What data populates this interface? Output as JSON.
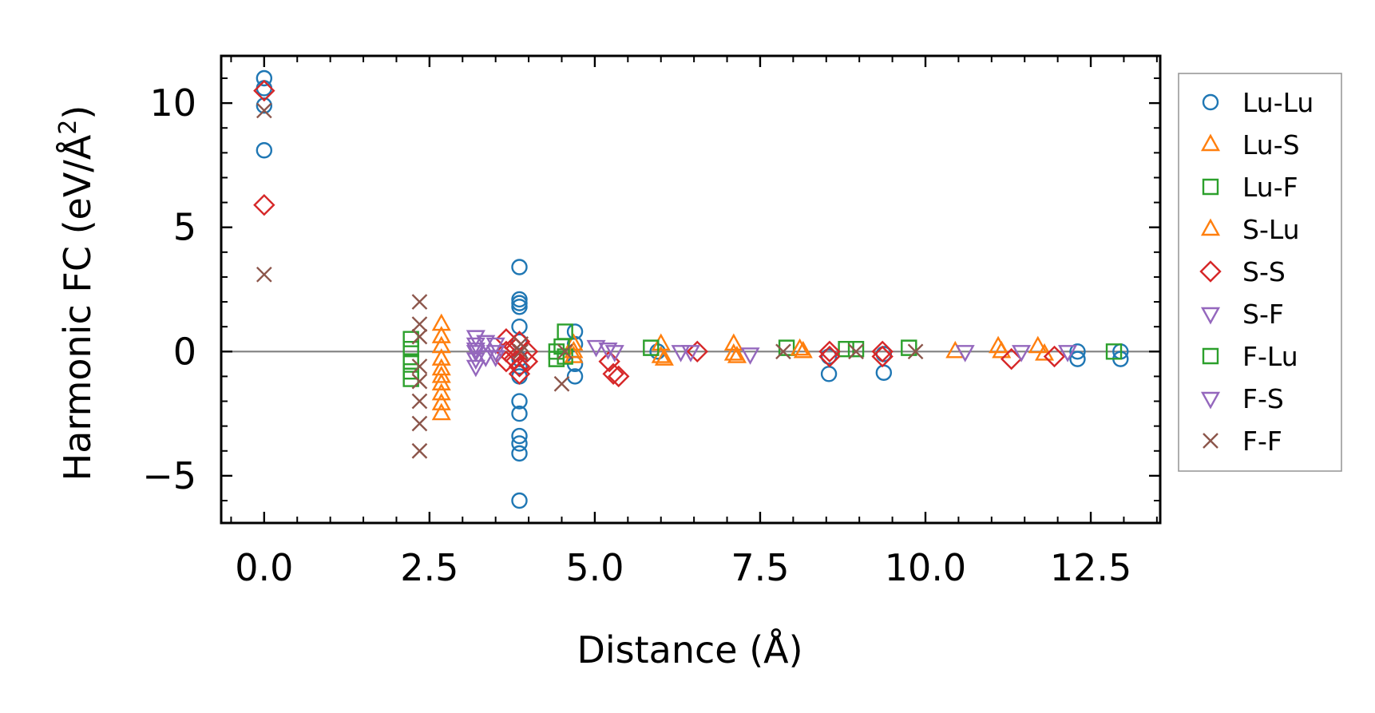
{
  "chart_data": {
    "type": "scatter",
    "title": "",
    "xlabel": "Distance (Å)",
    "ylabel_main": "Harmonic FC (eV/Å",
    "ylabel_sup": "2",
    "ylabel_end": ")",
    "xlim": [
      -0.65,
      13.55
    ],
    "ylim": [
      -6.9,
      11.9
    ],
    "x_ticks": [
      0.0,
      2.5,
      5.0,
      7.5,
      10.0,
      12.5
    ],
    "x_tick_labels": [
      "0.0",
      "2.5",
      "5.0",
      "7.5",
      "10.0",
      "12.5"
    ],
    "y_ticks": [
      -5,
      0,
      5,
      10
    ],
    "y_tick_labels": [
      "−5",
      "0",
      "5",
      "10"
    ],
    "zero_line": 0,
    "grid": false,
    "legend_position": "outside-right",
    "series": [
      {
        "name": "Lu-Lu",
        "marker": "circle",
        "color": "#1f77b4",
        "points": [
          [
            0,
            11.0
          ],
          [
            0,
            10.6
          ],
          [
            0,
            9.9
          ],
          [
            0,
            8.1
          ],
          [
            3.86,
            3.4
          ],
          [
            3.86,
            2.1
          ],
          [
            3.86,
            1.95
          ],
          [
            3.86,
            1.8
          ],
          [
            3.86,
            1.0
          ],
          [
            3.86,
            0.4
          ],
          [
            3.86,
            -0.3
          ],
          [
            3.86,
            -0.6
          ],
          [
            3.86,
            -1.0
          ],
          [
            3.86,
            -2.0
          ],
          [
            3.86,
            -2.5
          ],
          [
            3.86,
            -3.4
          ],
          [
            3.86,
            -3.7
          ],
          [
            3.86,
            -4.1
          ],
          [
            3.86,
            -6.0
          ],
          [
            4.7,
            0.8
          ],
          [
            4.7,
            0.3
          ],
          [
            4.7,
            -0.5
          ],
          [
            4.7,
            -1.0
          ],
          [
            5.95,
            0.0
          ],
          [
            8.54,
            -0.9
          ],
          [
            8.54,
            -0.2
          ],
          [
            9.37,
            -0.85
          ],
          [
            9.37,
            -0.1
          ],
          [
            12.3,
            -0.3
          ],
          [
            12.3,
            0.0
          ],
          [
            12.95,
            -0.3
          ],
          [
            12.95,
            0.0
          ]
        ]
      },
      {
        "name": "Lu-S",
        "marker": "triangle-up",
        "color": "#ff7f0e",
        "points": [
          [
            2.68,
            1.1
          ],
          [
            2.68,
            0.6
          ],
          [
            2.68,
            -0.3
          ],
          [
            2.68,
            -0.7
          ],
          [
            2.68,
            -1.3
          ],
          [
            2.68,
            -1.7
          ],
          [
            2.68,
            -2.1
          ],
          [
            2.68,
            -2.5
          ],
          [
            4.68,
            0.3
          ],
          [
            4.68,
            -0.2
          ],
          [
            6.0,
            0.3
          ],
          [
            6.0,
            -0.2
          ],
          [
            7.1,
            0.3
          ],
          [
            7.1,
            -0.1
          ],
          [
            8.15,
            0.0
          ],
          [
            10.45,
            0.0
          ],
          [
            11.1,
            0.2
          ],
          [
            11.7,
            0.2
          ]
        ]
      },
      {
        "name": "Lu-F",
        "marker": "square",
        "color": "#2ca02c",
        "points": [
          [
            2.22,
            0.5
          ],
          [
            2.22,
            0.1
          ],
          [
            2.22,
            -0.4
          ],
          [
            2.22,
            -0.8
          ],
          [
            2.22,
            -1.1
          ],
          [
            4.42,
            0.0
          ],
          [
            4.42,
            -0.3
          ],
          [
            4.55,
            0.8
          ],
          [
            4.55,
            -0.2
          ],
          [
            5.85,
            0.15
          ],
          [
            7.9,
            0.15
          ],
          [
            8.8,
            0.1
          ],
          [
            9.75,
            0.15
          ],
          [
            12.85,
            0.0
          ]
        ]
      },
      {
        "name": "S-Lu",
        "marker": "triangle-up",
        "color": "#ff7f0e",
        "points": [
          [
            2.68,
            0.2
          ],
          [
            2.68,
            -1.0
          ],
          [
            4.68,
            0.0
          ],
          [
            6.05,
            -0.3
          ],
          [
            7.15,
            -0.2
          ],
          [
            8.1,
            0.1
          ],
          [
            11.15,
            0.0
          ],
          [
            11.8,
            -0.1
          ]
        ]
      },
      {
        "name": "S-S",
        "marker": "diamond",
        "color": "#d62728",
        "points": [
          [
            0,
            10.5
          ],
          [
            0,
            5.9
          ],
          [
            3.66,
            0.5
          ],
          [
            3.66,
            0.0
          ],
          [
            3.66,
            -0.4
          ],
          [
            3.78,
            0.2
          ],
          [
            3.78,
            -0.3
          ],
          [
            3.86,
            0.4
          ],
          [
            3.86,
            -0.6
          ],
          [
            3.86,
            -0.9
          ],
          [
            3.98,
            0.0
          ],
          [
            3.98,
            -0.4
          ],
          [
            5.22,
            -0.4
          ],
          [
            5.28,
            -0.9
          ],
          [
            5.36,
            -1.0
          ],
          [
            6.55,
            0.0
          ],
          [
            8.55,
            0.0
          ],
          [
            8.55,
            -0.2
          ],
          [
            9.35,
            -0.2
          ],
          [
            9.35,
            0.0
          ],
          [
            11.3,
            -0.3
          ],
          [
            11.95,
            -0.2
          ]
        ]
      },
      {
        "name": "S-F",
        "marker": "triangle-down",
        "color": "#9467bd",
        "points": [
          [
            3.2,
            0.6
          ],
          [
            3.2,
            0.3
          ],
          [
            3.2,
            0.0
          ],
          [
            3.2,
            -0.3
          ],
          [
            3.2,
            -0.6
          ],
          [
            3.35,
            0.4
          ],
          [
            3.35,
            -0.2
          ],
          [
            3.5,
            0.3
          ],
          [
            3.5,
            -0.2
          ],
          [
            5.02,
            0.2
          ],
          [
            5.3,
            0.0
          ],
          [
            6.3,
            0.0
          ],
          [
            7.35,
            -0.1
          ],
          [
            10.6,
            0.0
          ]
        ]
      },
      {
        "name": "F-Lu",
        "marker": "square",
        "color": "#2ca02c",
        "points": [
          [
            4.5,
            0.2
          ],
          [
            8.95,
            0.1
          ]
        ]
      },
      {
        "name": "F-S",
        "marker": "triangle-down",
        "color": "#9467bd",
        "points": [
          [
            3.2,
            0.1
          ],
          [
            3.5,
            0.0
          ],
          [
            5.2,
            0.1
          ],
          [
            6.45,
            0.0
          ],
          [
            11.45,
            0.0
          ],
          [
            12.15,
            0.0
          ]
        ]
      },
      {
        "name": "F-F",
        "marker": "x",
        "color": "#8c564b",
        "points": [
          [
            0,
            9.7
          ],
          [
            0,
            3.1
          ],
          [
            2.35,
            2.0
          ],
          [
            2.35,
            1.1
          ],
          [
            2.35,
            0.6
          ],
          [
            2.35,
            -0.6
          ],
          [
            2.35,
            -1.2
          ],
          [
            2.35,
            -2.0
          ],
          [
            2.35,
            -2.9
          ],
          [
            2.35,
            -4.0
          ],
          [
            3.88,
            0.3
          ],
          [
            3.88,
            0.0
          ],
          [
            4.5,
            -1.3
          ],
          [
            4.55,
            0.0
          ],
          [
            7.85,
            0.0
          ],
          [
            8.95,
            0.0
          ],
          [
            9.85,
            0.0
          ]
        ]
      }
    ]
  }
}
